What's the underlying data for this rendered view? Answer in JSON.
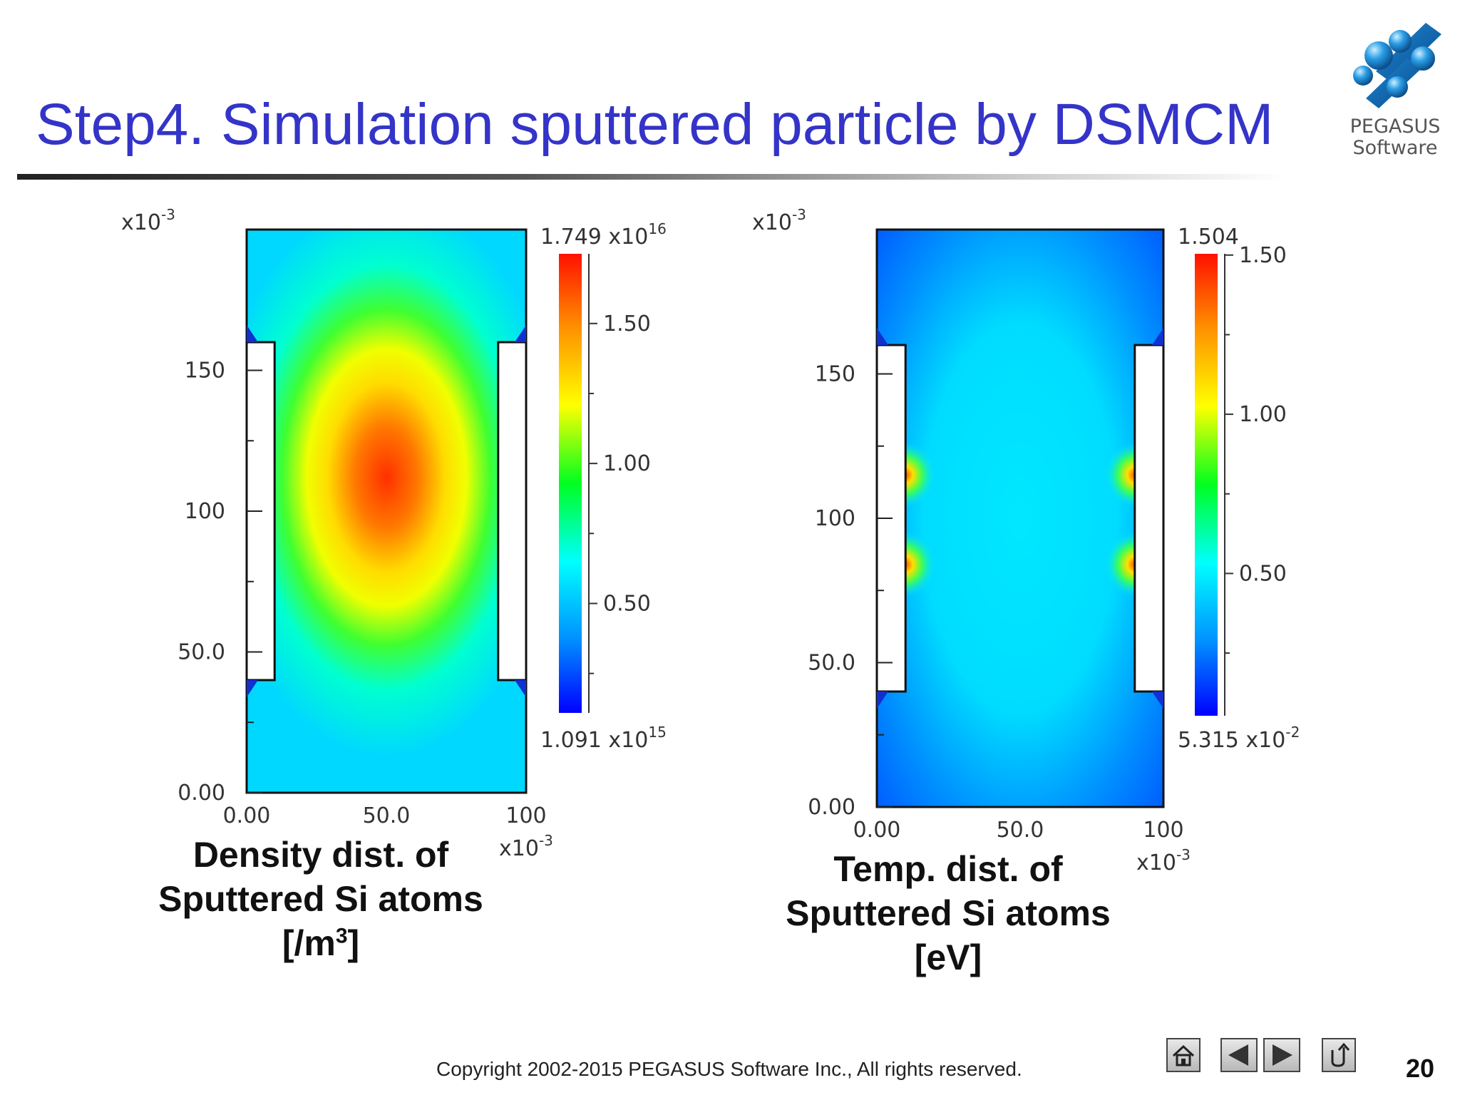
{
  "slide": {
    "title": "Step4. Simulation sputtered particle by DSMCM",
    "copyright": "Copyright 2002-2015 PEGASUS Software Inc., All rights reserved.",
    "page_number": "20"
  },
  "logo": {
    "line1": "PEGASUS",
    "line2": "Software",
    "icon": "pegasus-spheres-logo"
  },
  "nav": {
    "icons": [
      "home-icon",
      "previous-arrow-icon",
      "next-arrow-icon",
      "return-icon"
    ]
  },
  "colors": {
    "title": "#3434c8",
    "colormap": [
      "#0000ff",
      "#00a0ff",
      "#00ffff",
      "#00ff00",
      "#ffff00",
      "#ff8000",
      "#ff0000"
    ]
  },
  "chart_data": [
    {
      "type": "heatmap",
      "caption_line1": "Density dist. of",
      "caption_line2": "Sputtered Si atoms",
      "caption_unit_base": "[/m",
      "caption_unit_sup": "3",
      "caption_unit_end": "]",
      "x_ticks": [
        "0.00",
        "50.0",
        "100"
      ],
      "x_tick_values": [
        0,
        50,
        100
      ],
      "x_scale_label": "x10",
      "x_scale_exp": "-3",
      "y_ticks": [
        "0.00",
        "50.0",
        "100",
        "150"
      ],
      "y_tick_values": [
        0,
        50,
        100,
        150
      ],
      "y_scale_label": "x10",
      "y_scale_exp": "-3",
      "xlim": [
        0,
        100
      ],
      "ylim": [
        0,
        200
      ],
      "colorbar": {
        "max_label": "1.749 x10",
        "max_exp": "16",
        "min_label": "1.091 x10",
        "min_exp": "15",
        "ticks": [
          "1.50",
          "1.00",
          "0.50"
        ],
        "tick_values": [
          1.5,
          1.0,
          0.5
        ],
        "range": [
          0.1091,
          1.749
        ]
      },
      "electrodes": [
        {
          "x": [
            0,
            10
          ],
          "y": [
            40,
            160
          ]
        },
        {
          "x": [
            90,
            100
          ],
          "y": [
            40,
            160
          ]
        }
      ],
      "field": {
        "shape": "central-peak",
        "peak": [
          50,
          100
        ]
      }
    },
    {
      "type": "heatmap",
      "caption_line1": "Temp. dist. of",
      "caption_line2": "Sputtered Si atoms",
      "caption_unit_base": "[eV]",
      "caption_unit_sup": "",
      "caption_unit_end": "",
      "x_ticks": [
        "0.00",
        "50.0",
        "100"
      ],
      "x_tick_values": [
        0,
        50,
        100
      ],
      "x_scale_label": "x10",
      "x_scale_exp": "-3",
      "y_ticks": [
        "0.00",
        "50.0",
        "100",
        "150"
      ],
      "y_tick_values": [
        0,
        50,
        100,
        150
      ],
      "y_scale_label": "x10",
      "y_scale_exp": "-3",
      "xlim": [
        0,
        100
      ],
      "ylim": [
        0,
        200
      ],
      "colorbar": {
        "max_label": "1.504",
        "max_exp": "",
        "min_label": "5.315 x10",
        "min_exp": "-2",
        "ticks": [
          "1.50",
          "1.00",
          "0.50"
        ],
        "tick_values": [
          1.5,
          1.0,
          0.5
        ],
        "range": [
          0.05315,
          1.504
        ]
      },
      "electrodes": [
        {
          "x": [
            0,
            10
          ],
          "y": [
            40,
            160
          ]
        },
        {
          "x": [
            90,
            100
          ],
          "y": [
            40,
            160
          ]
        }
      ],
      "field": {
        "shape": "edge-hotspots",
        "hotspots": [
          [
            10,
            115
          ],
          [
            10,
            84
          ],
          [
            90,
            115
          ],
          [
            90,
            84
          ]
        ]
      }
    }
  ]
}
